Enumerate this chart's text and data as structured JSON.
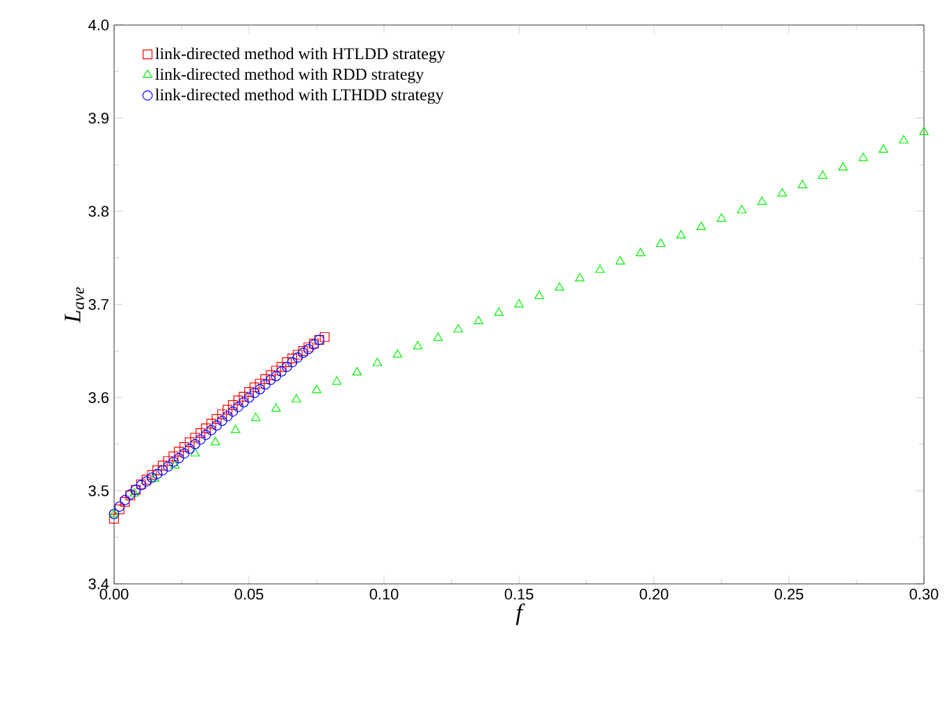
{
  "chart_data": {
    "type": "scatter",
    "xlabel": "f",
    "ylabel": "L$_{ave}$",
    "xlim": [
      0,
      0.3
    ],
    "ylim": [
      3.4,
      4.0
    ],
    "xticks": [
      {
        "value": 0,
        "label": "0.00"
      },
      {
        "value": 0.05,
        "label": "0.05"
      },
      {
        "value": 0.1,
        "label": "0.10"
      },
      {
        "value": 0.15,
        "label": "0.15"
      },
      {
        "value": 0.2,
        "label": "0.20"
      },
      {
        "value": 0.25,
        "label": "0.25"
      },
      {
        "value": 0.3,
        "label": "0.30"
      }
    ],
    "yticks": [
      {
        "value": 3.4,
        "label": "3.4"
      },
      {
        "value": 3.5,
        "label": "3.5"
      },
      {
        "value": 3.6,
        "label": "3.6"
      },
      {
        "value": 3.7,
        "label": "3.7"
      },
      {
        "value": 3.8,
        "label": "3.8"
      },
      {
        "value": 3.9,
        "label": "3.9"
      },
      {
        "value": 4.0,
        "label": "4.0"
      }
    ],
    "legend": "top left",
    "grid": false,
    "series": [
      {
        "name": "link-directed method with HTLDD strategy",
        "color": "#ff0000",
        "marker": "square",
        "x": [
          0,
          0.002,
          0.004,
          0.006,
          0.008,
          0.01,
          0.012,
          0.014,
          0.016,
          0.018,
          0.02,
          0.022,
          0.024,
          0.026,
          0.028,
          0.03,
          0.032,
          0.034,
          0.036,
          0.038,
          0.04,
          0.042,
          0.044,
          0.046,
          0.048,
          0.05,
          0.052,
          0.054,
          0.056,
          0.058,
          0.06,
          0.062,
          0.064,
          0.066,
          0.068,
          0.07,
          0.072,
          0.074,
          0.076,
          0.078
        ],
        "values": [
          3.47,
          3.48,
          3.488,
          3.495,
          3.501,
          3.507,
          3.512,
          3.517,
          3.522,
          3.527,
          3.532,
          3.537,
          3.542,
          3.547,
          3.552,
          3.557,
          3.562,
          3.567,
          3.572,
          3.577,
          3.582,
          3.587,
          3.592,
          3.597,
          3.601,
          3.606,
          3.611,
          3.615,
          3.62,
          3.624,
          3.629,
          3.633,
          3.638,
          3.642,
          3.646,
          3.65,
          3.654,
          3.658,
          3.662,
          3.665
        ]
      },
      {
        "name": "link-directed method with RDD strategy",
        "color": "#00ee00",
        "marker": "triangle",
        "x": [
          0,
          0.0075,
          0.015,
          0.0225,
          0.03,
          0.0375,
          0.045,
          0.0525,
          0.06,
          0.0675,
          0.075,
          0.0825,
          0.09,
          0.0975,
          0.105,
          0.1125,
          0.12,
          0.1275,
          0.135,
          0.1425,
          0.15,
          0.1575,
          0.165,
          0.1725,
          0.18,
          0.1875,
          0.195,
          0.2025,
          0.21,
          0.2175,
          0.225,
          0.2325,
          0.24,
          0.2475,
          0.255,
          0.2625,
          0.27,
          0.2775,
          0.285,
          0.2925,
          0.3
        ],
        "values": [
          3.475,
          3.497,
          3.513,
          3.527,
          3.54,
          3.552,
          3.565,
          3.578,
          3.588,
          3.598,
          3.608,
          3.617,
          3.627,
          3.637,
          3.646,
          3.655,
          3.664,
          3.673,
          3.682,
          3.691,
          3.7,
          3.709,
          3.718,
          3.728,
          3.737,
          3.746,
          3.755,
          3.765,
          3.774,
          3.783,
          3.792,
          3.801,
          3.81,
          3.819,
          3.828,
          3.838,
          3.847,
          3.857,
          3.866,
          3.876,
          3.885
        ]
      },
      {
        "name": "link-directed method with LTHDD strategy",
        "color": "#0000ff",
        "marker": "circle",
        "x": [
          0,
          0.002,
          0.004,
          0.006,
          0.008,
          0.01,
          0.012,
          0.014,
          0.016,
          0.018,
          0.02,
          0.022,
          0.024,
          0.026,
          0.028,
          0.03,
          0.032,
          0.034,
          0.036,
          0.038,
          0.04,
          0.042,
          0.044,
          0.046,
          0.048,
          0.05,
          0.052,
          0.054,
          0.056,
          0.058,
          0.06,
          0.062,
          0.064,
          0.066,
          0.068,
          0.07,
          0.072,
          0.074,
          0.076
        ],
        "values": [
          3.475,
          3.483,
          3.49,
          3.496,
          3.501,
          3.506,
          3.51,
          3.514,
          3.518,
          3.522,
          3.526,
          3.531,
          3.535,
          3.54,
          3.545,
          3.55,
          3.555,
          3.56,
          3.565,
          3.57,
          3.575,
          3.58,
          3.585,
          3.59,
          3.595,
          3.6,
          3.605,
          3.609,
          3.614,
          3.619,
          3.623,
          3.628,
          3.633,
          3.638,
          3.643,
          3.648,
          3.652,
          3.657,
          3.662
        ]
      }
    ]
  }
}
